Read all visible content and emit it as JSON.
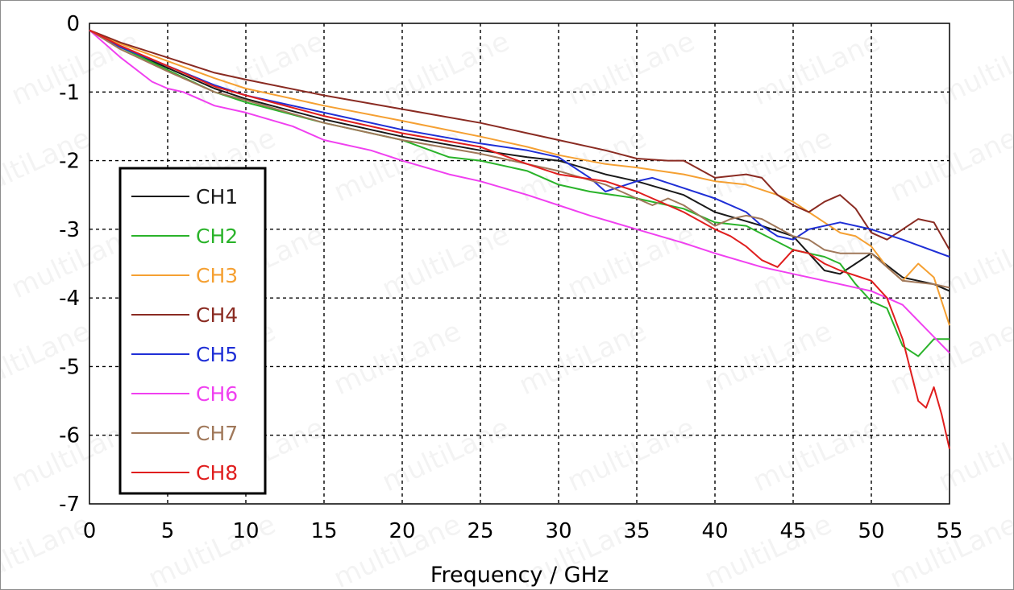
{
  "chart_data": {
    "type": "line",
    "title": "",
    "xlabel": "Frequency / GHz",
    "ylabel": "",
    "xlim": [
      0,
      55
    ],
    "ylim": [
      -7,
      0
    ],
    "xticks": [
      0,
      5,
      10,
      15,
      20,
      25,
      30,
      35,
      40,
      45,
      50,
      55
    ],
    "yticks": [
      0,
      -1,
      -2,
      -3,
      -4,
      -5,
      -6,
      -7
    ],
    "grid": true,
    "legend_position": "left-center",
    "watermark": "multiLane",
    "series": [
      {
        "name": "CH1",
        "color": "#1a1a1a",
        "x": [
          0,
          2,
          5,
          8,
          10,
          15,
          20,
          25,
          28,
          30,
          33,
          35,
          38,
          40,
          43,
          45,
          46,
          47,
          48,
          49,
          50,
          52,
          54,
          55
        ],
        "y": [
          -0.1,
          -0.35,
          -0.65,
          -0.95,
          -1.1,
          -1.4,
          -1.65,
          -1.85,
          -1.95,
          -2.0,
          -2.2,
          -2.3,
          -2.5,
          -2.75,
          -2.95,
          -3.1,
          -3.35,
          -3.6,
          -3.65,
          -3.5,
          -3.35,
          -3.7,
          -3.8,
          -3.9
        ]
      },
      {
        "name": "CH2",
        "color": "#2ab32a",
        "x": [
          0,
          2,
          5,
          8,
          10,
          15,
          20,
          23,
          25,
          28,
          30,
          32,
          35,
          38,
          40,
          42,
          45,
          47,
          48,
          49,
          50,
          51,
          52,
          53,
          54,
          55
        ],
        "y": [
          -0.1,
          -0.35,
          -0.68,
          -1.0,
          -1.15,
          -1.45,
          -1.7,
          -1.95,
          -2.0,
          -2.15,
          -2.35,
          -2.45,
          -2.55,
          -2.7,
          -2.9,
          -2.95,
          -3.3,
          -3.4,
          -3.5,
          -3.8,
          -4.05,
          -4.15,
          -4.7,
          -4.85,
          -4.6,
          -4.6
        ]
      },
      {
        "name": "CH3",
        "color": "#f5a032",
        "x": [
          0,
          2,
          5,
          8,
          10,
          15,
          20,
          25,
          28,
          30,
          33,
          35,
          38,
          40,
          42,
          44,
          45,
          46,
          47,
          48,
          49,
          50,
          51,
          52,
          53,
          54,
          55
        ],
        "y": [
          -0.1,
          -0.3,
          -0.55,
          -0.8,
          -0.95,
          -1.2,
          -1.42,
          -1.65,
          -1.8,
          -1.92,
          -2.05,
          -2.1,
          -2.2,
          -2.3,
          -2.35,
          -2.5,
          -2.6,
          -2.75,
          -2.9,
          -3.05,
          -3.1,
          -3.25,
          -3.55,
          -3.75,
          -3.5,
          -3.7,
          -4.4
        ]
      },
      {
        "name": "CH4",
        "color": "#8a2b22",
        "x": [
          0,
          2,
          5,
          8,
          10,
          15,
          20,
          25,
          28,
          30,
          33,
          35,
          37,
          38,
          40,
          42,
          43,
          44,
          45,
          46,
          47,
          48,
          49,
          50,
          51,
          52,
          53,
          54,
          55
        ],
        "y": [
          -0.1,
          -0.28,
          -0.5,
          -0.72,
          -0.82,
          -1.05,
          -1.25,
          -1.45,
          -1.6,
          -1.7,
          -1.85,
          -1.97,
          -2.0,
          -2.0,
          -2.25,
          -2.2,
          -2.25,
          -2.5,
          -2.65,
          -2.75,
          -2.6,
          -2.5,
          -2.7,
          -3.05,
          -3.15,
          -3.0,
          -2.85,
          -2.9,
          -3.3
        ]
      },
      {
        "name": "CH5",
        "color": "#1f2fd6",
        "x": [
          0,
          2,
          5,
          8,
          10,
          15,
          20,
          25,
          28,
          30,
          32,
          33,
          35,
          36,
          38,
          40,
          42,
          43,
          44,
          45,
          46,
          48,
          50,
          52,
          55
        ],
        "y": [
          -0.1,
          -0.35,
          -0.62,
          -0.9,
          -1.05,
          -1.3,
          -1.55,
          -1.75,
          -1.85,
          -1.95,
          -2.25,
          -2.45,
          -2.3,
          -2.25,
          -2.4,
          -2.55,
          -2.75,
          -2.95,
          -3.1,
          -3.15,
          -3.0,
          -2.9,
          -3.0,
          -3.15,
          -3.4
        ]
      },
      {
        "name": "CH6",
        "color": "#f040f0",
        "x": [
          0,
          2,
          4,
          5,
          6,
          8,
          10,
          13,
          15,
          18,
          20,
          23,
          25,
          28,
          30,
          32,
          35,
          38,
          40,
          43,
          45,
          47,
          50,
          52,
          55
        ],
        "y": [
          -0.1,
          -0.5,
          -0.85,
          -0.95,
          -1.0,
          -1.2,
          -1.3,
          -1.5,
          -1.7,
          -1.85,
          -2.0,
          -2.2,
          -2.3,
          -2.5,
          -2.65,
          -2.8,
          -3.0,
          -3.2,
          -3.35,
          -3.55,
          -3.65,
          -3.75,
          -3.9,
          -4.1,
          -4.8
        ]
      },
      {
        "name": "CH7",
        "color": "#a0785a",
        "x": [
          0,
          2,
          5,
          8,
          10,
          15,
          20,
          25,
          28,
          30,
          33,
          35,
          36,
          37,
          38,
          40,
          41,
          42,
          43,
          45,
          46,
          47,
          48,
          50,
          52,
          54,
          55
        ],
        "y": [
          -0.1,
          -0.38,
          -0.7,
          -1.0,
          -1.12,
          -1.45,
          -1.7,
          -1.9,
          -2.05,
          -2.15,
          -2.35,
          -2.55,
          -2.65,
          -2.55,
          -2.65,
          -2.95,
          -2.85,
          -2.8,
          -2.85,
          -3.1,
          -3.15,
          -3.3,
          -3.35,
          -3.35,
          -3.75,
          -3.8,
          -3.85
        ]
      },
      {
        "name": "CH8",
        "color": "#e01e1e",
        "x": [
          0,
          2,
          5,
          8,
          10,
          15,
          20,
          25,
          28,
          30,
          33,
          35,
          38,
          40,
          41,
          42,
          43,
          44,
          45,
          46,
          47,
          48,
          50,
          51,
          52,
          53,
          53.5,
          54,
          54.5,
          55
        ],
        "y": [
          -0.1,
          -0.33,
          -0.62,
          -0.92,
          -1.05,
          -1.35,
          -1.6,
          -1.8,
          -2.05,
          -2.2,
          -2.3,
          -2.45,
          -2.75,
          -3.0,
          -3.1,
          -3.25,
          -3.45,
          -3.55,
          -3.3,
          -3.35,
          -3.5,
          -3.6,
          -3.75,
          -4.0,
          -4.6,
          -5.5,
          -5.6,
          -5.3,
          -5.7,
          -6.2
        ]
      }
    ]
  }
}
